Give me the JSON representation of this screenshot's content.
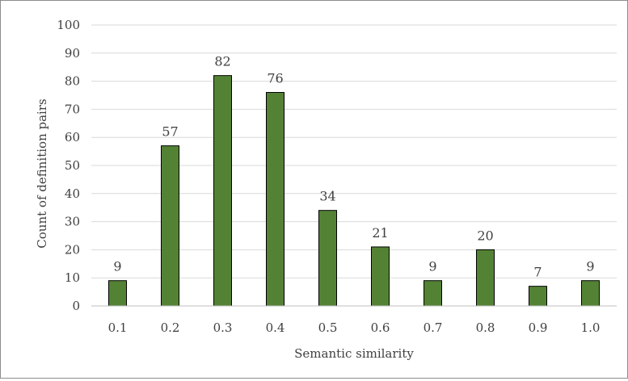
{
  "chart_data": {
    "type": "bar",
    "title": "",
    "xlabel": "Semantic similarity",
    "ylabel": "Count of definition pairs",
    "categories": [
      "0.1",
      "0.2",
      "0.3",
      "0.4",
      "0.5",
      "0.6",
      "0.7",
      "0.8",
      "0.9",
      "1.0"
    ],
    "values": [
      9,
      57,
      82,
      76,
      34,
      21,
      9,
      20,
      7,
      9
    ],
    "ylim": [
      0,
      100
    ],
    "yticks": [
      0,
      10,
      20,
      30,
      40,
      50,
      60,
      70,
      80,
      90,
      100
    ],
    "grid": true,
    "legend": "none",
    "bar_color": "#548235",
    "bar_edge_color": "#000000",
    "gridline_color": "#d9d9d9"
  }
}
